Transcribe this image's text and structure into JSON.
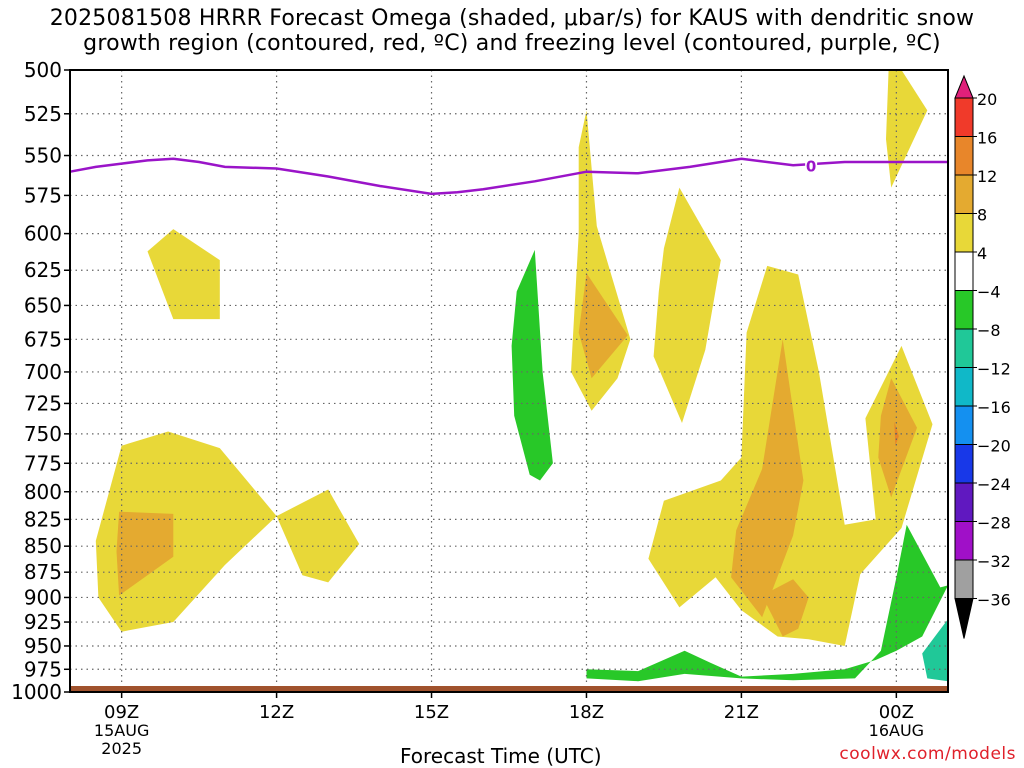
{
  "title": {
    "line1": "2025081508 HRRR Forecast Omega (shaded, μbar/s) for KAUS with dendritic snow",
    "line2": "growth region (contoured, red, ºC) and freezing level (contoured, purple, ºC)"
  },
  "credit": "coolwx.com/models",
  "chart_data": {
    "type": "heatmap",
    "title": "2025081508 HRRR Forecast Omega (shaded, μbar/s) for KAUS with dendritic snow growth region (contoured, red, ºC) and freezing level (contoured, purple, ºC)",
    "xlabel": "Forecast Time (UTC)",
    "ylabel": "",
    "x_ticks": [
      {
        "hour": 9,
        "lines": [
          "09Z",
          "15AUG",
          "2025"
        ]
      },
      {
        "hour": 12,
        "lines": [
          "12Z"
        ]
      },
      {
        "hour": 15,
        "lines": [
          "15Z"
        ]
      },
      {
        "hour": 18,
        "lines": [
          "18Z"
        ]
      },
      {
        "hour": 21,
        "lines": [
          "21Z"
        ]
      },
      {
        "hour": 24,
        "lines": [
          "00Z",
          "16AUG"
        ]
      }
    ],
    "xlim": [
      8.0,
      25.0
    ],
    "y_ticks": [
      500,
      525,
      550,
      575,
      600,
      625,
      650,
      675,
      700,
      725,
      750,
      775,
      800,
      825,
      850,
      875,
      900,
      925,
      950,
      975,
      1000
    ],
    "ylim": [
      500,
      1000
    ],
    "y_scale": "log-pressure (inverted)",
    "grid": true,
    "colorbar": {
      "levels": [
        20,
        16,
        12,
        8,
        4,
        -4,
        -8,
        -12,
        -16,
        -20,
        -24,
        -28,
        -32,
        -36
      ],
      "labels": [
        "20",
        "16",
        "12",
        "8",
        "4",
        "−4",
        "−8",
        "−12",
        "−16",
        "−20",
        "−24",
        "−28",
        "−32",
        "−36"
      ],
      "colors": [
        "#e0207a",
        "#f03a2a",
        "#e8862a",
        "#e4aa30",
        "#e8d838",
        "#ffffff",
        "#28c828",
        "#20c898",
        "#10b8c8",
        "#1490f0",
        "#1838e8",
        "#6018c0",
        "#a010c8",
        "#a0a0a0",
        "#000000"
      ]
    },
    "freezing_level": {
      "label": "0",
      "color": "#9a14c8",
      "points": [
        [
          8.0,
          560
        ],
        [
          8.5,
          557
        ],
        [
          9.0,
          555
        ],
        [
          9.5,
          553
        ],
        [
          10.0,
          552
        ],
        [
          10.5,
          554
        ],
        [
          11.0,
          557
        ],
        [
          12.0,
          558
        ],
        [
          13.0,
          563
        ],
        [
          14.0,
          569
        ],
        [
          15.0,
          574
        ],
        [
          15.5,
          573
        ],
        [
          16.0,
          571
        ],
        [
          17.0,
          566
        ],
        [
          18.0,
          560
        ],
        [
          19.0,
          561
        ],
        [
          20.0,
          557
        ],
        [
          21.0,
          552
        ],
        [
          22.0,
          556
        ],
        [
          22.5,
          555
        ],
        [
          23.0,
          554
        ],
        [
          24.0,
          554
        ],
        [
          25.0,
          554
        ]
      ]
    },
    "omega_regions": [
      {
        "level": "4 to 8",
        "points": [
          [
            9.5,
            612
          ],
          [
            10.0,
            597
          ],
          [
            10.9,
            618
          ],
          [
            10.9,
            660
          ],
          [
            10.0,
            660
          ]
        ]
      },
      {
        "level": "4 to 8",
        "points": [
          [
            9.0,
            760
          ],
          [
            9.9,
            748
          ],
          [
            10.9,
            762
          ],
          [
            12.0,
            822
          ],
          [
            11.0,
            868
          ],
          [
            10.0,
            925
          ],
          [
            9.0,
            935
          ],
          [
            8.55,
            900
          ],
          [
            8.5,
            845
          ]
        ]
      },
      {
        "level": "4 to 8",
        "points": [
          [
            12.0,
            822
          ],
          [
            13.0,
            798
          ],
          [
            13.6,
            848
          ],
          [
            13.0,
            885
          ],
          [
            12.5,
            878
          ]
        ]
      },
      {
        "level": "8 to 12",
        "points": [
          [
            8.95,
            818
          ],
          [
            10.0,
            820
          ],
          [
            10.0,
            860
          ],
          [
            8.95,
            898
          ],
          [
            8.9,
            855
          ]
        ]
      },
      {
        "level": "4 to 8",
        "points": [
          [
            17.85,
            545
          ],
          [
            18.0,
            523
          ],
          [
            18.2,
            595
          ],
          [
            18.85,
            675
          ],
          [
            18.6,
            705
          ],
          [
            18.1,
            731
          ],
          [
            17.7,
            700
          ],
          [
            17.85,
            600
          ]
        ]
      },
      {
        "level": "8 to 12",
        "points": [
          [
            18.0,
            627
          ],
          [
            18.8,
            672
          ],
          [
            18.1,
            705
          ],
          [
            17.85,
            670
          ]
        ]
      },
      {
        "level": "4 to 8",
        "points": [
          [
            19.5,
            610
          ],
          [
            19.8,
            570
          ],
          [
            20.6,
            618
          ],
          [
            20.3,
            683
          ],
          [
            19.85,
            741
          ],
          [
            19.3,
            688
          ],
          [
            19.4,
            640
          ]
        ]
      },
      {
        "level": "4 to 8",
        "points": [
          [
            21.1,
            670
          ],
          [
            21.5,
            622
          ],
          [
            22.1,
            628
          ],
          [
            22.5,
            700
          ],
          [
            23.0,
            830
          ],
          [
            23.6,
            825
          ],
          [
            23.4,
            737
          ],
          [
            24.1,
            680
          ],
          [
            24.7,
            742
          ],
          [
            24.1,
            833
          ],
          [
            23.3,
            877
          ],
          [
            23.0,
            950
          ],
          [
            22.3,
            943
          ],
          [
            21.7,
            940
          ],
          [
            21.0,
            913
          ],
          [
            20.5,
            880
          ],
          [
            19.8,
            910
          ],
          [
            19.2,
            862
          ],
          [
            19.5,
            808
          ],
          [
            20.6,
            790
          ],
          [
            21.0,
            770
          ]
        ]
      },
      {
        "level": "8 to 12",
        "points": [
          [
            21.4,
            780
          ],
          [
            21.8,
            675
          ],
          [
            22.2,
            790
          ],
          [
            22.0,
            840
          ],
          [
            21.4,
            920
          ],
          [
            20.8,
            880
          ],
          [
            20.9,
            835
          ]
        ]
      },
      {
        "level": "8 to 12",
        "points": [
          [
            21.4,
            898
          ],
          [
            22.0,
            882
          ],
          [
            22.3,
            900
          ],
          [
            22.1,
            932
          ],
          [
            21.8,
            940
          ]
        ]
      },
      {
        "level": "8 to 12",
        "points": [
          [
            23.9,
            705
          ],
          [
            24.4,
            745
          ],
          [
            23.9,
            805
          ],
          [
            23.65,
            770
          ],
          [
            23.7,
            735
          ]
        ]
      },
      {
        "level": "12 to 16",
        "points": [
          [
            23.96,
            740
          ],
          [
            24.05,
            752
          ],
          [
            23.98,
            760
          ]
        ]
      },
      {
        "level": "4 to 8",
        "points": [
          [
            23.85,
            500
          ],
          [
            24.1,
            500
          ],
          [
            24.6,
            523
          ],
          [
            23.9,
            570
          ],
          [
            23.8,
            540
          ]
        ]
      },
      {
        "level": "-4 to -8",
        "points": [
          [
            16.65,
            640
          ],
          [
            17.0,
            611
          ],
          [
            17.15,
            700
          ],
          [
            17.35,
            775
          ],
          [
            17.1,
            790
          ],
          [
            16.9,
            785
          ],
          [
            16.6,
            735
          ],
          [
            16.55,
            680
          ]
        ]
      },
      {
        "level": "-4 to -8",
        "points": [
          [
            18.0,
            975
          ],
          [
            19.0,
            977
          ],
          [
            19.9,
            955
          ],
          [
            20.4,
            968
          ],
          [
            21.0,
            983
          ],
          [
            22.0,
            980
          ],
          [
            23.0,
            975
          ],
          [
            23.6,
            965
          ],
          [
            24.0,
            955
          ],
          [
            24.5,
            940
          ],
          [
            25.0,
            888
          ],
          [
            24.85,
            890
          ],
          [
            24.2,
            830
          ],
          [
            24.0,
            880
          ],
          [
            23.7,
            955
          ],
          [
            23.2,
            985
          ],
          [
            22.0,
            987
          ],
          [
            21.0,
            985
          ],
          [
            19.9,
            980
          ],
          [
            19.0,
            988
          ],
          [
            18.0,
            985
          ]
        ]
      },
      {
        "level": "-8 to -12",
        "points": [
          [
            24.5,
            958
          ],
          [
            25.0,
            922
          ],
          [
            25.0,
            988
          ],
          [
            24.6,
            985
          ]
        ]
      }
    ],
    "surface_color": "#a0522d"
  }
}
